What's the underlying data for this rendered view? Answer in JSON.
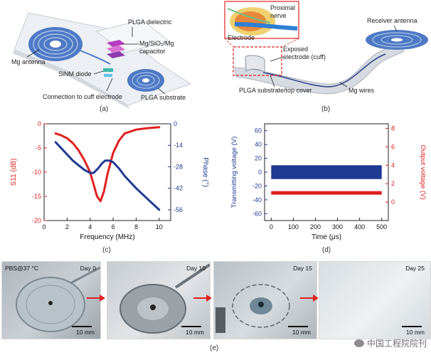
{
  "panel_a": {
    "label": "(a)",
    "callouts": {
      "dielectric": "PLGA dielectric",
      "capacitor": "Mg/SiO₂/Mg capacitor",
      "antenna": "Mg antenna",
      "diode": "SiNM diode",
      "substrate": "PLGA substrate",
      "connection": "Connection to cuff electrode"
    }
  },
  "panel_b": {
    "label": "(b)",
    "callouts": {
      "nerve": "Proximal nerve",
      "electrode": "Electrode",
      "receiver": "Receiver antenna",
      "exposed": "Exposed electrode (cuff)",
      "substrate": "PLGA substrate/top cover",
      "wires": "Mg wires"
    }
  },
  "panel_c": {
    "label": "(c)",
    "ylabel_left": "S11 (dB)",
    "ylabel_right": "Phase (°)",
    "xlabel": "Frequency (MHz)"
  },
  "panel_d": {
    "label": "(d)",
    "ylabel_left": "Transmitting voltage (V)",
    "ylabel_right": "Output voltage (V)",
    "xlabel": "Time (μs)"
  },
  "panel_e": {
    "label": "(e)",
    "condition": "PBS@37 °C",
    "days": [
      "Day 0",
      "Day 10",
      "Day 15",
      "Day 25"
    ],
    "scale": "10 mm"
  },
  "watermark": "中国工程院院刊",
  "colors": {
    "red": "#e02020",
    "blue": "#1f3a93"
  },
  "chart_data": [
    {
      "type": "line",
      "xlabel": "Frequency (MHz)",
      "ylabel": "S11 (dB)",
      "y2label": "Phase (°)",
      "xlim": [
        0,
        11
      ],
      "ylim": [
        -20,
        0
      ],
      "y2lim": [
        -63,
        0
      ],
      "xticks": [
        0,
        2,
        4,
        6,
        8,
        10
      ],
      "yticks": [
        0,
        -5,
        -10,
        -15,
        -20
      ],
      "y2ticks": [
        0,
        -14,
        -28,
        -42,
        -56
      ],
      "series": [
        {
          "axis": "left",
          "color": "#e02020",
          "x": [
            1,
            1.5,
            2,
            2.5,
            3,
            3.5,
            4,
            4.3,
            4.6,
            4.9,
            5.2,
            5.5,
            6,
            6.5,
            7,
            8,
            9,
            10
          ],
          "values": [
            -2,
            -2.4,
            -3,
            -4,
            -5.5,
            -7.5,
            -10,
            -12.5,
            -15,
            -16,
            -14,
            -10.5,
            -6,
            -3.5,
            -2,
            -1.2,
            -0.9,
            -0.7
          ]
        },
        {
          "axis": "right",
          "color": "#1f3a93",
          "x": [
            1,
            1.5,
            2,
            2.5,
            3,
            3.5,
            4,
            4.3,
            4.7,
            5,
            5.3,
            5.7,
            6,
            6.5,
            7,
            8,
            9,
            10
          ],
          "values": [
            -12,
            -16,
            -20,
            -24,
            -27,
            -30,
            -32,
            -32,
            -29,
            -26,
            -24,
            -24,
            -25,
            -29,
            -34,
            -42,
            -49,
            -56
          ]
        }
      ]
    },
    {
      "type": "area",
      "xlabel": "Time (μs)",
      "ylabel": "Transmitting voltage (V)",
      "y2label": "Output voltage (V)",
      "xlim": [
        -30,
        530
      ],
      "ylim": [
        -70,
        70
      ],
      "y2lim": [
        -2,
        8.5
      ],
      "xticks": [
        0,
        100,
        200,
        300,
        400,
        500
      ],
      "yticks": [
        -60,
        -40,
        -20,
        0,
        20,
        40,
        60
      ],
      "y2ticks": [
        0,
        2,
        4,
        6,
        8
      ],
      "series": [
        {
          "axis": "left",
          "color": "#1f3a93",
          "x_range": [
            0,
            500
          ],
          "amplitude": 10,
          "offset": 0
        },
        {
          "axis": "right",
          "color": "#e02020",
          "x_range": [
            0,
            500
          ],
          "level": 1.0
        }
      ]
    }
  ]
}
